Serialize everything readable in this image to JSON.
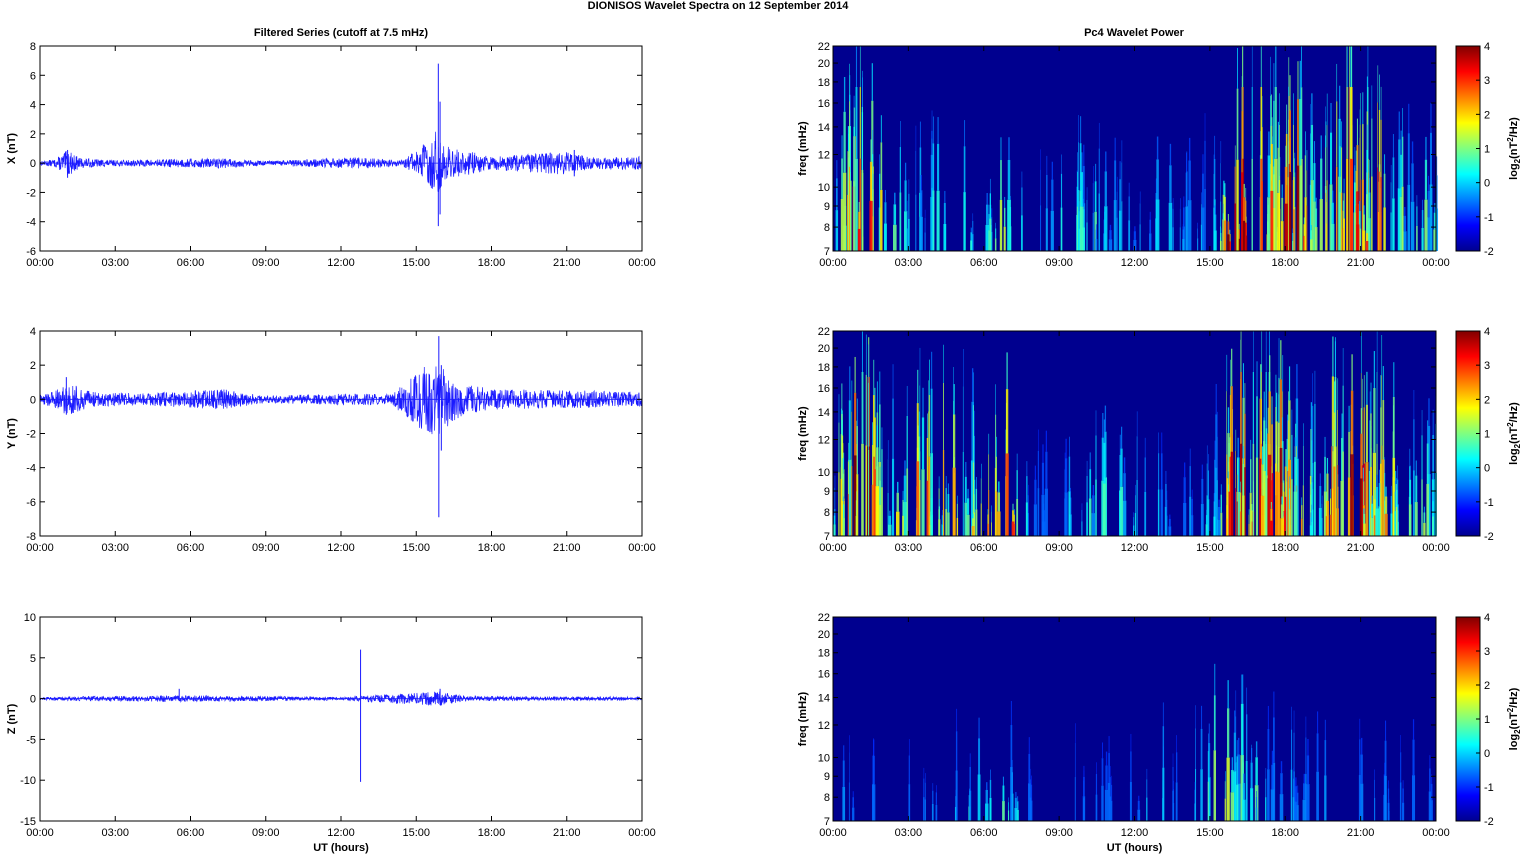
{
  "figure": {
    "title": "DIONISOS Wavelet Spectra on 12 September 2014",
    "left_title": "Filtered Series (cutoff at 7.5 mHz)",
    "right_title": "Pc4 Wavelet Power",
    "x_label": "UT (hours)"
  },
  "colors": {
    "trace": "#1a1aff",
    "axis": "#000000"
  },
  "chart_data": [
    {
      "type": "line",
      "name": "X",
      "ylabel": "X (nT)",
      "ylim": [
        -6,
        8
      ],
      "yticks": [
        -6,
        -4,
        -2,
        0,
        2,
        4,
        6,
        8
      ],
      "xlim": [
        0,
        24
      ],
      "xticks": [
        "00:00",
        "03:00",
        "06:00",
        "09:00",
        "12:00",
        "15:00",
        "18:00",
        "21:00",
        "00:00"
      ],
      "noise_envelope": [
        [
          0,
          0.15
        ],
        [
          0.6,
          0.25
        ],
        [
          1.1,
          0.9
        ],
        [
          1.6,
          0.35
        ],
        [
          3,
          0.2
        ],
        [
          7.2,
          0.35
        ],
        [
          9,
          0.15
        ],
        [
          12.6,
          0.4
        ],
        [
          14.5,
          0.2
        ],
        [
          15.8,
          2.2
        ],
        [
          16.2,
          1.2
        ],
        [
          18,
          0.45
        ],
        [
          21,
          0.8
        ],
        [
          22,
          0.4
        ],
        [
          24,
          0.45
        ]
      ],
      "spikes": [
        {
          "x": 15.88,
          "min": -4.3,
          "max": 6.8
        },
        {
          "x": 15.95,
          "min": -3.5,
          "max": 4.2
        },
        {
          "x": 1.1,
          "min": -1.0,
          "max": 0.9
        },
        {
          "x": 21.3,
          "min": -0.9,
          "max": 0.9
        }
      ]
    },
    {
      "type": "line",
      "name": "Y",
      "ylabel": "Y (nT)",
      "ylim": [
        -8,
        4
      ],
      "yticks": [
        -8,
        -6,
        -4,
        -2,
        0,
        2,
        4
      ],
      "xlim": [
        0,
        24
      ],
      "xticks": [
        "00:00",
        "03:00",
        "06:00",
        "09:00",
        "12:00",
        "15:00",
        "18:00",
        "21:00",
        "00:00"
      ],
      "noise_envelope": [
        [
          0,
          0.3
        ],
        [
          0.6,
          0.5
        ],
        [
          1.1,
          1.0
        ],
        [
          2,
          0.45
        ],
        [
          4,
          0.35
        ],
        [
          7.3,
          0.6
        ],
        [
          9,
          0.2
        ],
        [
          12,
          0.35
        ],
        [
          14,
          0.3
        ],
        [
          15.8,
          2.5
        ],
        [
          16.3,
          1.5
        ],
        [
          17,
          0.9
        ],
        [
          18,
          0.6
        ],
        [
          22,
          0.5
        ],
        [
          24,
          0.4
        ]
      ],
      "spikes": [
        {
          "x": 15.9,
          "min": -6.9,
          "max": 3.7
        },
        {
          "x": 16.0,
          "min": -3.0,
          "max": 2.0
        },
        {
          "x": 1.05,
          "min": -0.9,
          "max": 1.3
        }
      ]
    },
    {
      "type": "line",
      "name": "Z",
      "ylabel": "Z (nT)",
      "ylim": [
        -15,
        10
      ],
      "yticks": [
        -15,
        -10,
        -5,
        0,
        5,
        10
      ],
      "xlim": [
        0,
        24
      ],
      "xticks": [
        "00:00",
        "03:00",
        "06:00",
        "09:00",
        "12:00",
        "15:00",
        "18:00",
        "21:00",
        "00:00"
      ],
      "xlabel": "UT (hours)",
      "noise_envelope": [
        [
          0,
          0.15
        ],
        [
          1,
          0.25
        ],
        [
          5.5,
          0.4
        ],
        [
          12,
          0.2
        ],
        [
          15.9,
          0.9
        ],
        [
          17,
          0.3
        ],
        [
          24,
          0.2
        ]
      ],
      "spikes": [
        {
          "x": 12.78,
          "min": -10.2,
          "max": 6.0
        },
        {
          "x": 5.55,
          "min": -0.3,
          "max": 1.2
        },
        {
          "x": 15.95,
          "min": -0.8,
          "max": 1.2
        }
      ]
    },
    {
      "type": "heatmap",
      "name": "X wavelet power",
      "ylabel": "freq (mHz)",
      "y_scale": "log",
      "ylim": [
        7,
        22
      ],
      "yticks": [
        7,
        8,
        9,
        10,
        12,
        14,
        16,
        18,
        20,
        22
      ],
      "xlim": [
        0,
        24
      ],
      "xticks": [
        "00:00",
        "03:00",
        "06:00",
        "09:00",
        "12:00",
        "15:00",
        "18:00",
        "21:00",
        "00:00"
      ],
      "colorbar": {
        "label": "log2(nT2/Hz)",
        "range": [
          -2,
          4
        ],
        "ticks": [
          -2,
          -1,
          0,
          1,
          2,
          3,
          4
        ]
      },
      "activity": [
        [
          0,
          0.35
        ],
        [
          0.7,
          0.75
        ],
        [
          1.1,
          1.0
        ],
        [
          1.6,
          0.7
        ],
        [
          2.2,
          0.4
        ],
        [
          3.5,
          0.35
        ],
        [
          5,
          0.4
        ],
        [
          6,
          0.35
        ],
        [
          7.2,
          0.6
        ],
        [
          8,
          0.15
        ],
        [
          9,
          0.3
        ],
        [
          10,
          0.4
        ],
        [
          11.5,
          0.25
        ],
        [
          14,
          0.25
        ],
        [
          15.3,
          0.4
        ],
        [
          15.7,
          1.0
        ],
        [
          17,
          1.0
        ],
        [
          18.5,
          0.9
        ],
        [
          19.5,
          0.6
        ],
        [
          20.5,
          1.0
        ],
        [
          21.5,
          0.85
        ],
        [
          22.5,
          0.5
        ],
        [
          23.5,
          0.45
        ],
        [
          24,
          0.4
        ]
      ]
    },
    {
      "type": "heatmap",
      "name": "Y wavelet power",
      "ylabel": "freq (mHz)",
      "y_scale": "log",
      "ylim": [
        7,
        22
      ],
      "yticks": [
        7,
        8,
        9,
        10,
        12,
        14,
        16,
        18,
        20,
        22
      ],
      "xlim": [
        0,
        24
      ],
      "xticks": [
        "00:00",
        "03:00",
        "06:00",
        "09:00",
        "12:00",
        "15:00",
        "18:00",
        "21:00",
        "00:00"
      ],
      "colorbar": {
        "label": "log2(nT2/Hz)",
        "range": [
          -2,
          4
        ],
        "ticks": [
          -2,
          -1,
          0,
          1,
          2,
          3,
          4
        ]
      },
      "activity": [
        [
          0,
          0.6
        ],
        [
          0.7,
          0.9
        ],
        [
          1.1,
          1.0
        ],
        [
          1.8,
          0.7
        ],
        [
          2.5,
          0.55
        ],
        [
          3.5,
          0.75
        ],
        [
          4.5,
          0.8
        ],
        [
          5.5,
          0.6
        ],
        [
          7.2,
          0.8
        ],
        [
          7.8,
          0.2
        ],
        [
          8.5,
          0.1
        ],
        [
          9.5,
          0.35
        ],
        [
          10.5,
          0.35
        ],
        [
          12,
          0.3
        ],
        [
          14,
          0.15
        ],
        [
          15.5,
          0.5
        ],
        [
          15.7,
          1.0
        ],
        [
          17,
          1.0
        ],
        [
          18,
          0.85
        ],
        [
          19,
          0.5
        ],
        [
          20,
          0.8
        ],
        [
          21,
          0.95
        ],
        [
          22,
          0.8
        ],
        [
          23,
          0.5
        ],
        [
          24,
          0.4
        ]
      ]
    },
    {
      "type": "heatmap",
      "name": "Z wavelet power",
      "ylabel": "freq (mHz)",
      "xlabel": "UT (hours)",
      "y_scale": "log",
      "ylim": [
        7,
        22
      ],
      "yticks": [
        7,
        8,
        9,
        10,
        12,
        14,
        16,
        18,
        20,
        22
      ],
      "xlim": [
        0,
        24
      ],
      "xticks": [
        "00:00",
        "03:00",
        "06:00",
        "09:00",
        "12:00",
        "15:00",
        "18:00",
        "21:00",
        "00:00"
      ],
      "colorbar": {
        "label": "log2(nT2/Hz)",
        "range": [
          -2,
          4
        ],
        "ticks": [
          -2,
          -1,
          0,
          1,
          2,
          3,
          4
        ]
      },
      "activity": [
        [
          0,
          0.05
        ],
        [
          1,
          0.35
        ],
        [
          2,
          0.05
        ],
        [
          3.5,
          0.2
        ],
        [
          4.7,
          0.3
        ],
        [
          5.4,
          0.35
        ],
        [
          7.2,
          0.4
        ],
        [
          8,
          0.05
        ],
        [
          12,
          0.05
        ],
        [
          12.5,
          0.35
        ],
        [
          14,
          0.05
        ],
        [
          15.5,
          0.6
        ],
        [
          16,
          0.5
        ],
        [
          17,
          0.35
        ],
        [
          18,
          0.2
        ],
        [
          19,
          0.2
        ],
        [
          20,
          0.15
        ],
        [
          22,
          0.15
        ],
        [
          24,
          0.05
        ]
      ]
    }
  ]
}
